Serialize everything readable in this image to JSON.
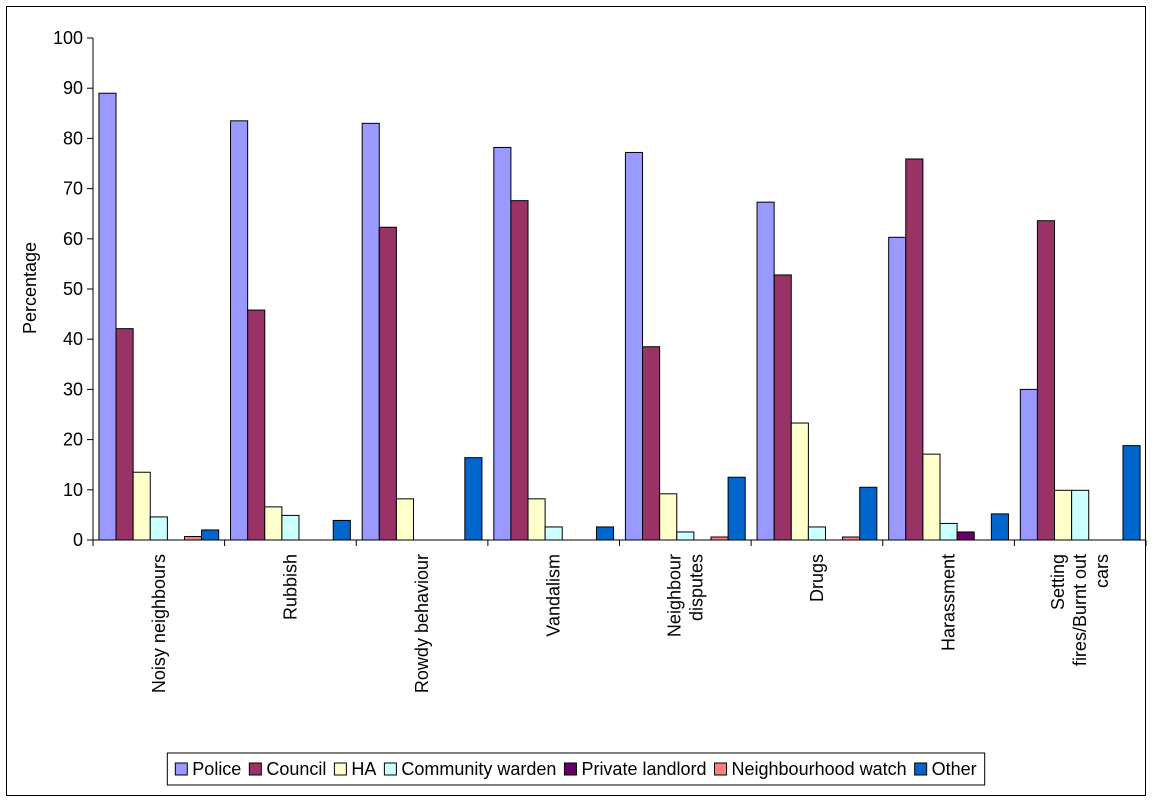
{
  "chart_data": {
    "type": "bar",
    "ylabel": "Percentage",
    "xlabel": "",
    "ylim": [
      0,
      100
    ],
    "yticks": [
      0,
      10,
      20,
      30,
      40,
      50,
      60,
      70,
      80,
      90,
      100
    ],
    "grid": false,
    "legend_position": "bottom",
    "categories": [
      [
        "Noisy neighbours"
      ],
      [
        "Rubbish"
      ],
      [
        "Rowdy behaviour"
      ],
      [
        "Vandalism"
      ],
      [
        "Neighbour",
        "disputes"
      ],
      [
        "Drugs"
      ],
      [
        "Harassment"
      ],
      [
        "Setting",
        "fires/Burnt out",
        "cars"
      ]
    ],
    "series": [
      {
        "name": "Police",
        "color": "#9999ff",
        "values": [
          89,
          83.5,
          83,
          78.2,
          77.2,
          67.3,
          60.3,
          30
        ]
      },
      {
        "name": "Council",
        "color": "#993366",
        "values": [
          42.1,
          45.8,
          62.3,
          67.6,
          38.5,
          52.8,
          75.9,
          63.6
        ]
      },
      {
        "name": "HA",
        "color": "#ffffcc",
        "values": [
          13.5,
          6.6,
          8.2,
          8.2,
          9.2,
          23.3,
          17.1,
          9.9
        ]
      },
      {
        "name": "Community warden",
        "color": "#ccffff",
        "values": [
          4.6,
          4.9,
          0,
          2.6,
          1.6,
          2.6,
          3.3,
          9.9
        ]
      },
      {
        "name": "Private landlord",
        "color": "#660066",
        "values": [
          0,
          0,
          0,
          0,
          0,
          0,
          1.6,
          0
        ]
      },
      {
        "name": "Neighbourhood watch",
        "color": "#ff8080",
        "values": [
          0.7,
          0,
          0,
          0,
          0.6,
          0.6,
          0,
          0
        ]
      },
      {
        "name": "Other",
        "color": "#0066cc",
        "values": [
          2,
          3.9,
          16.4,
          2.6,
          12.5,
          10.5,
          5.2,
          18.8
        ]
      }
    ]
  }
}
